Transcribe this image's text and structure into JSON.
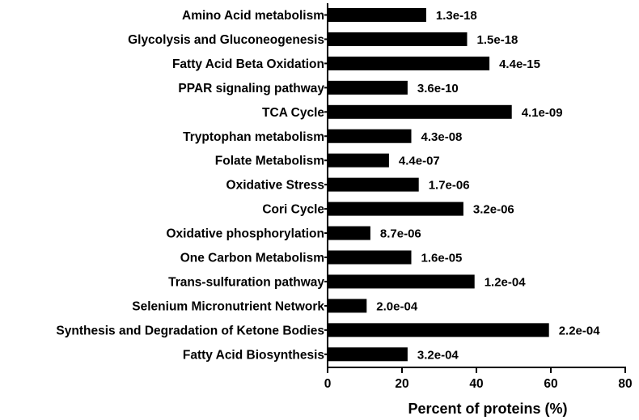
{
  "chart_data": {
    "type": "bar",
    "orientation": "horizontal",
    "title": "",
    "xlabel": "Percent of proteins (%)",
    "ylabel": "",
    "xlim": [
      0,
      80
    ],
    "xticks": [
      0,
      20,
      40,
      60,
      80
    ],
    "grid": false,
    "legend": "none",
    "bar_color": "#000000",
    "categories": [
      "Amino Acid metabolism",
      "Glycolysis and Gluconeogenesis",
      "Fatty Acid Beta Oxidation",
      "PPAR signaling pathway",
      "TCA Cycle",
      "Tryptophan metabolism",
      "Folate Metabolism",
      "Oxidative Stress",
      "Cori Cycle",
      "Oxidative phosphorylation",
      "One Carbon Metabolism",
      "Trans-sulfuration pathway",
      "Selenium Micronutrient Network",
      "Synthesis and Degradation of Ketone Bodies",
      "Fatty Acid Biosynthesis"
    ],
    "values": [
      26.5,
      37.5,
      43.5,
      21.5,
      49.5,
      22.5,
      16.5,
      24.5,
      36.5,
      11.5,
      22.5,
      39.5,
      10.5,
      59.5,
      21.5
    ],
    "annotations": [
      "1.3e-18",
      "1.5e-18",
      "4.4e-15",
      "3.6e-10",
      "4.1e-09",
      "4.3e-08",
      "4.4e-07",
      "1.7e-06",
      "3.2e-06",
      "8.7e-06",
      "1.6e-05",
      "1.2e-04",
      "2.0e-04",
      "2.2e-04",
      "3.2e-04"
    ]
  }
}
